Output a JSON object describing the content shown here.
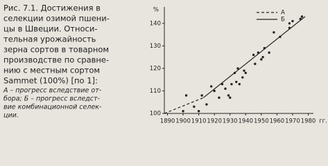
{
  "caption": {
    "lines": [
      "Рис. 7.1. Достижения в",
      "селекции озимой пшени-",
      "цы в Швеции. Относи-",
      "тельная урожайность",
      "зерна сортов в товарном",
      "производстве по сравне-",
      "нию с местным сортом",
      "Sammet (100%) [по 1]:"
    ],
    "note": [
      "А – прогресс вследствие от-",
      "бора; Б – прогресс вследст-",
      "вие комбинационной селек-",
      "ции."
    ]
  },
  "chart_data": {
    "type": "scatter",
    "y_label": "%",
    "x_unit": "гг.",
    "xlim": [
      1888,
      1982
    ],
    "ylim": [
      100,
      145
    ],
    "xticks": [
      1890,
      1900,
      1910,
      1920,
      1930,
      1940,
      1950,
      1960,
      1970,
      1980
    ],
    "yticks": [
      100,
      110,
      120,
      130,
      140
    ],
    "series": [
      {
        "name": "А",
        "style": "dashed",
        "color": "#222",
        "x": [
          1888,
          1913
        ],
        "values": [
          100,
          107
        ]
      },
      {
        "name": "Б",
        "style": "solid",
        "color": "#222",
        "x": [
          1913,
          1978
        ],
        "values": [
          107,
          143
        ]
      },
      {
        "style": "points",
        "color": "#222",
        "x": [
          1900,
          1902,
          1907,
          1910,
          1912,
          1915,
          1918,
          1920,
          1923,
          1925,
          1927,
          1929,
          1930,
          1931,
          1933,
          1934,
          1935,
          1936,
          1938,
          1939,
          1940,
          1945,
          1946,
          1948,
          1950,
          1951,
          1952,
          1955,
          1958,
          1962,
          1968,
          1968,
          1970,
          1975,
          1976
        ],
        "values": [
          101,
          108,
          103,
          101,
          108,
          104,
          112,
          110,
          107,
          113,
          111,
          108,
          107,
          113,
          118,
          114,
          120,
          113,
          116,
          119,
          118,
          126,
          122,
          127,
          124,
          125,
          129,
          127,
          136,
          134,
          140,
          138,
          141,
          142,
          143
        ]
      }
    ]
  }
}
